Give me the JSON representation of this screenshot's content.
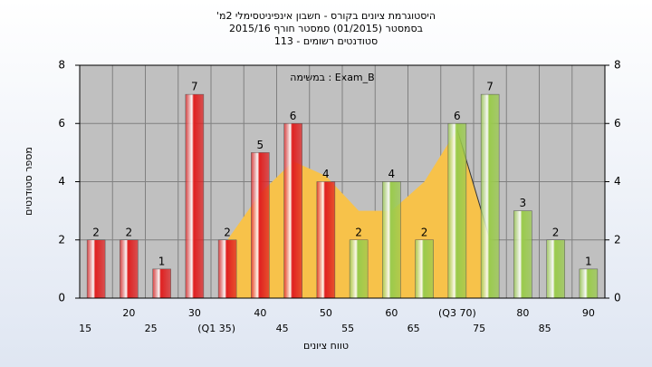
{
  "chart_data": {
    "type": "bar",
    "title": "'היסטוגרמת ציונים בקורס - חשבון אינפיניטסימלי 2מ",
    "subtitle": "בסמסטר  (01/2015)  סמסטר חורף 2015/16",
    "subtitle2": "סטודנטים רשומים - 113",
    "annotation": "במשימה : Exam_B",
    "x_label": "טווח ציונים",
    "y_label": "מספר סטודנטים",
    "categories": [
      "15",
      "20",
      "25",
      "30",
      "(Q1 35)",
      "40",
      "45",
      "50",
      "55",
      "60",
      "65",
      "(Q3 70)",
      "75",
      "80",
      "85",
      "90"
    ],
    "values": [
      2,
      2,
      1,
      7,
      2,
      5,
      6,
      4,
      2,
      4,
      2,
      6,
      7,
      3,
      2,
      1
    ],
    "colors": [
      "#e02020",
      "#e02020",
      "#e02020",
      "#e02020",
      "#e02020",
      "#e02020",
      "#e02020",
      "#e02020",
      "#9acb4c",
      "#9acb4c",
      "#9acb4c",
      "#9acb4c",
      "#9acb4c",
      "#9acb4c",
      "#9acb4c",
      "#9acb4c"
    ],
    "background_area": {
      "color": "#f7c24a",
      "values": [
        null,
        null,
        null,
        null,
        2,
        3.6,
        4.7,
        4.2,
        3,
        3,
        4,
        5.8,
        2,
        null,
        null,
        null
      ]
    },
    "ylim": [
      0,
      8
    ],
    "yticks": [
      0,
      2,
      4,
      6,
      8
    ],
    "y2lim": [
      0,
      8
    ],
    "y2ticks": [
      0,
      2,
      4,
      6,
      8
    ],
    "grid": true
  }
}
